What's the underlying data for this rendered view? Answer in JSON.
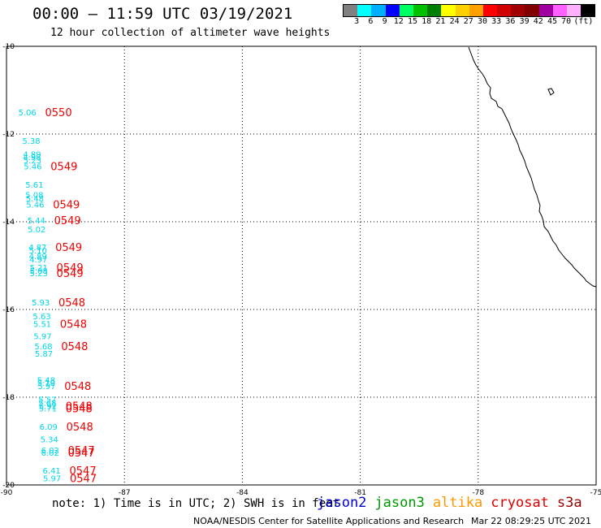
{
  "header": {
    "title": "00:00 – 11:59 UTC 03/19/2021",
    "subtitle": "12 hour collection of altimeter wave heights"
  },
  "colorbar": {
    "colors": [
      "#808080",
      "#00ffff",
      "#00b0ff",
      "#0000ff",
      "#00ff60",
      "#00c000",
      "#008000",
      "#ffff00",
      "#ffd000",
      "#ffa000",
      "#ff0000",
      "#d00000",
      "#a00000",
      "#800000",
      "#a000a0",
      "#ff60ff",
      "#ffb0ff",
      "#000000"
    ],
    "labels": [
      "3",
      "6",
      "9",
      "12",
      "15",
      "18",
      "21",
      "24",
      "27",
      "30",
      "33",
      "36",
      "39",
      "42",
      "45",
      "70",
      "(ft)"
    ]
  },
  "axes": {
    "lon_ticks": [
      "-90",
      "-87",
      "-84",
      "-81",
      "-78",
      "-75"
    ],
    "lat_ticks": [
      "-10",
      "-12",
      "-14",
      "-16",
      "-18",
      "-20"
    ],
    "lon_range": [
      -90,
      -75
    ],
    "lat_range": [
      -20,
      -10
    ]
  },
  "observations": [
    {
      "lat": -11.5,
      "lon": -89.7,
      "swh": "5.06",
      "time": "0550"
    },
    {
      "lat": -12.15,
      "lon": -89.6,
      "swh": "5.38",
      "time": ""
    },
    {
      "lat": -12.45,
      "lon": -89.58,
      "swh": "4.89",
      "time": ""
    },
    {
      "lat": -12.52,
      "lon": -89.58,
      "swh": "4.98",
      "time": ""
    },
    {
      "lat": -12.59,
      "lon": -89.57,
      "swh": "5.23",
      "time": ""
    },
    {
      "lat": -12.73,
      "lon": -89.56,
      "swh": "5.46",
      "time": "0549"
    },
    {
      "lat": -13.15,
      "lon": -89.52,
      "swh": "5.61",
      "time": ""
    },
    {
      "lat": -13.38,
      "lon": -89.52,
      "swh": "5.08",
      "time": ""
    },
    {
      "lat": -13.46,
      "lon": -89.51,
      "swh": "5.48",
      "time": ""
    },
    {
      "lat": -13.6,
      "lon": -89.5,
      "swh": "5.46",
      "time": "0549"
    },
    {
      "lat": -13.96,
      "lon": -89.47,
      "swh": "5.44",
      "time": "0549"
    },
    {
      "lat": -14.17,
      "lon": -89.46,
      "swh": "5.02",
      "time": ""
    },
    {
      "lat": -14.57,
      "lon": -89.44,
      "swh": "4.87",
      "time": "0549"
    },
    {
      "lat": -14.65,
      "lon": -89.43,
      "swh": "5.10",
      "time": ""
    },
    {
      "lat": -14.78,
      "lon": -89.43,
      "swh": "4.89",
      "time": ""
    },
    {
      "lat": -14.85,
      "lon": -89.42,
      "swh": "4.97",
      "time": ""
    },
    {
      "lat": -15.04,
      "lon": -89.41,
      "swh": "5.21",
      "time": "0549"
    },
    {
      "lat": -15.11,
      "lon": -89.41,
      "swh": "5.08",
      "time": ""
    },
    {
      "lat": -15.17,
      "lon": -89.41,
      "swh": "5.23",
      "time": "0549"
    },
    {
      "lat": -15.83,
      "lon": -89.36,
      "swh": "5.93",
      "time": "0548"
    },
    {
      "lat": -16.15,
      "lon": -89.33,
      "swh": "5.63",
      "time": ""
    },
    {
      "lat": -16.32,
      "lon": -89.32,
      "swh": "5.51",
      "time": "0548"
    },
    {
      "lat": -16.6,
      "lon": -89.31,
      "swh": "5.97",
      "time": ""
    },
    {
      "lat": -16.83,
      "lon": -89.29,
      "swh": "5.68",
      "time": "0548"
    },
    {
      "lat": -17.0,
      "lon": -89.28,
      "swh": "5.87",
      "time": ""
    },
    {
      "lat": -17.6,
      "lon": -89.22,
      "swh": "5.48",
      "time": ""
    },
    {
      "lat": -17.67,
      "lon": -89.22,
      "swh": "5.10",
      "time": ""
    },
    {
      "lat": -17.74,
      "lon": -89.21,
      "swh": "5.97",
      "time": "0548"
    },
    {
      "lat": -18.05,
      "lon": -89.19,
      "swh": "5.57",
      "time": ""
    },
    {
      "lat": -18.12,
      "lon": -89.19,
      "swh": "5.68",
      "time": ""
    },
    {
      "lat": -18.19,
      "lon": -89.18,
      "swh": "5.92",
      "time": "0548"
    },
    {
      "lat": -18.25,
      "lon": -89.18,
      "swh": "5.71",
      "time": "0548"
    },
    {
      "lat": -18.67,
      "lon": -89.16,
      "swh": "6.09",
      "time": "0548"
    },
    {
      "lat": -18.95,
      "lon": -89.14,
      "swh": "5.34",
      "time": ""
    },
    {
      "lat": -19.2,
      "lon": -89.12,
      "swh": "6.02",
      "time": "0547"
    },
    {
      "lat": -19.26,
      "lon": -89.12,
      "swh": "6.02",
      "time": "0547"
    },
    {
      "lat": -19.67,
      "lon": -89.08,
      "swh": "6.41",
      "time": "0547"
    },
    {
      "lat": -19.84,
      "lon": -89.07,
      "swh": "5.97",
      "time": "0547"
    }
  ],
  "note": "note: 1) Time is in UTC; 2) SWH is in feet",
  "legend": [
    {
      "name": "jason2",
      "color": "#0000cc"
    },
    {
      "name": "jason3",
      "color": "#009900"
    },
    {
      "name": "altika",
      "color": "#ff9900"
    },
    {
      "name": "cryosat",
      "color": "#dd0000"
    },
    {
      "name": "s3a",
      "color": "#990000"
    }
  ],
  "footer": {
    "credit": "NOAA/NESDIS Center for Satellite Applications and Research",
    "timestamp": "Mar 22 08:29:25 UTC 2021"
  }
}
